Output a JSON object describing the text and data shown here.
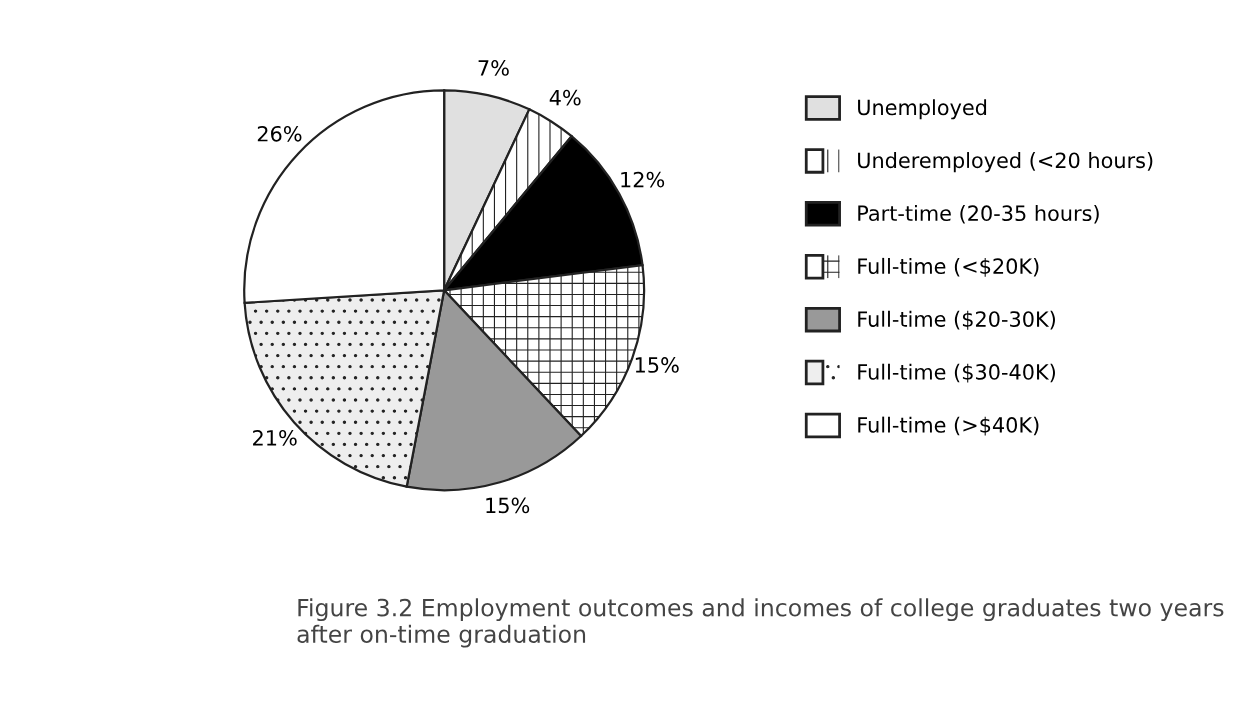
{
  "chart_data": {
    "type": "pie",
    "categories": [
      "Unemployed",
      "Underemployed (<20 hours)",
      "Part-time (20-35 hours)",
      "Full-time (<$20K)",
      "Full-time ($20-30K)",
      "Full-time ($30-40K)",
      "Full-time (>$40K)"
    ],
    "values": [
      7,
      4,
      12,
      15,
      15,
      21,
      26
    ],
    "colors": [
      "#e0e0e0",
      "#ffffff",
      "#000000",
      "#ffffff",
      "#999999",
      "#eeeeee",
      "#ffffff"
    ],
    "value_labels": [
      "7%",
      "4%",
      "12%",
      "15%",
      "15%",
      "21%",
      "26%"
    ],
    "legend": "right",
    "annotations": [
      "Figure 3.2 Employment outcomes and incomes of college graduates two years after on-time graduation"
    ]
  }
}
